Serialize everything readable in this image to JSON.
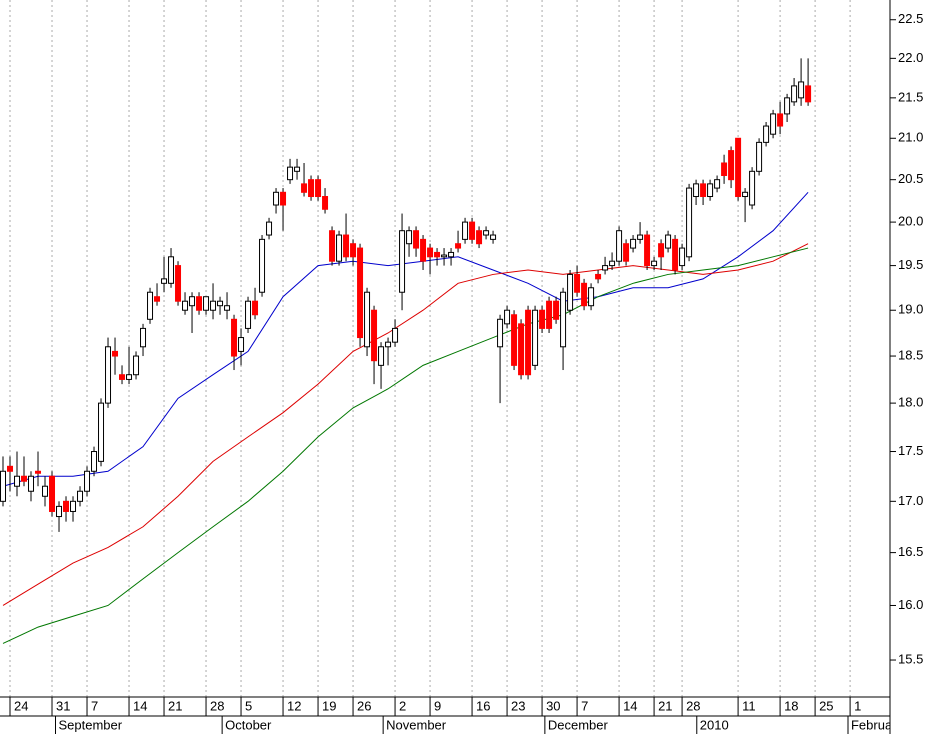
{
  "chart_data": {
    "type": "candlestick",
    "log_scale": true,
    "grid": true,
    "up_color": "#ffffff",
    "down_color": "#ff0000",
    "xlim": [
      -0.43,
      126.7
    ],
    "ylim": [
      15.17,
      22.76
    ],
    "yticks": [
      15.5,
      {
        "value": 16,
        "label": "16.0"
      },
      16.5,
      {
        "value": 17,
        "label": "17.0"
      },
      17.5,
      {
        "value": 18,
        "label": "18.0"
      },
      18.5,
      {
        "value": 19,
        "label": "19.0"
      },
      19.5,
      {
        "value": 20,
        "label": "20.0"
      },
      20.5,
      {
        "value": 21,
        "label": "21.0"
      },
      21.5,
      {
        "value": 22,
        "label": "22.0"
      },
      22.5
    ],
    "xticks": [
      {
        "value": 1,
        "label": "24"
      },
      {
        "value": 7,
        "label": "31"
      },
      {
        "value": 12,
        "label": "7"
      },
      {
        "value": 18,
        "label": "14"
      },
      {
        "value": 23,
        "label": "21"
      },
      {
        "value": 29,
        "label": "28"
      },
      {
        "value": 34,
        "label": "5"
      },
      {
        "value": 40,
        "label": "12"
      },
      {
        "value": 45,
        "label": "19"
      },
      {
        "value": 50,
        "label": "26"
      },
      {
        "value": 56,
        "label": "2"
      },
      {
        "value": 61,
        "label": "9"
      },
      {
        "value": 67,
        "label": "16"
      },
      {
        "value": 72,
        "label": "23"
      },
      {
        "value": 77,
        "label": "30"
      },
      {
        "value": 82,
        "label": "7"
      },
      {
        "value": 88,
        "label": "14"
      },
      {
        "value": 93,
        "label": "21"
      },
      {
        "value": 97,
        "label": "28"
      },
      {
        "value": 105,
        "label": "11"
      },
      {
        "value": 111,
        "label": "18"
      },
      {
        "value": 116,
        "label": "25"
      },
      {
        "value": 121,
        "label": "1"
      }
    ],
    "month_ticks": [
      {
        "value": 7.5,
        "label": "September"
      },
      {
        "value": 31.3,
        "label": "October"
      },
      {
        "value": 54.3,
        "label": "November"
      },
      {
        "value": 77.4,
        "label": "December"
      },
      {
        "value": 99.1,
        "label": "2010"
      },
      {
        "value": 120.7,
        "label": "February"
      }
    ],
    "open": [
      17.0,
      17.35,
      17.15,
      17.25,
      17.1,
      17.3,
      17.05,
      17.25,
      16.85,
      17.0,
      16.9,
      17.0,
      17.1,
      17.3,
      17.4,
      18.0,
      18.55,
      18.3,
      18.25,
      18.3,
      18.6,
      18.9,
      19.15,
      19.3,
      19.3,
      19.5,
      19.0,
      19.05,
      19.15,
      19.0,
      19.0,
      19.05,
      19.0,
      18.9,
      18.55,
      18.8,
      19.1,
      19.2,
      19.85,
      20.2,
      20.35,
      20.5,
      20.6,
      20.45,
      20.5,
      20.5,
      20.3,
      19.9,
      19.55,
      19.85,
      19.75,
      19.7,
      18.6,
      19.0,
      18.4,
      18.6,
      18.65,
      19.2,
      19.75,
      19.9,
      19.8,
      19.7,
      19.65,
      19.6,
      19.6,
      19.75,
      19.8,
      20.0,
      19.9,
      19.85,
      19.8,
      18.6,
      18.85,
      18.95,
      18.85,
      19.0,
      18.4,
      19.0,
      19.1,
      19.1,
      18.6,
      19.0,
      19.4,
      19.3,
      19.05,
      19.4,
      19.45,
      19.5,
      19.55,
      19.75,
      19.7,
      19.8,
      19.85,
      19.5,
      19.75,
      19.7,
      19.8,
      19.5,
      19.6,
      20.3,
      20.45,
      20.3,
      20.4,
      20.7,
      20.85,
      21.0,
      20.3,
      20.2,
      20.6,
      20.95,
      21.05,
      21.3,
      21.3,
      21.45,
      21.5,
      21.65
    ],
    "high": [
      17.45,
      17.45,
      17.5,
      17.45,
      17.3,
      17.5,
      17.25,
      17.3,
      17.0,
      17.05,
      17.05,
      17.15,
      17.35,
      17.55,
      18.05,
      18.7,
      18.7,
      18.4,
      18.6,
      18.55,
      18.85,
      19.25,
      19.3,
      19.6,
      19.7,
      19.55,
      19.2,
      19.2,
      19.2,
      19.15,
      19.3,
      19.15,
      19.2,
      18.95,
      18.8,
      19.15,
      19.25,
      19.85,
      20.05,
      20.4,
      20.4,
      20.75,
      20.75,
      20.7,
      20.55,
      20.55,
      20.4,
      19.95,
      19.9,
      20.1,
      19.8,
      19.75,
      19.25,
      19.05,
      18.65,
      18.7,
      18.9,
      20.1,
      19.95,
      19.95,
      19.85,
      19.75,
      19.7,
      19.7,
      19.7,
      19.9,
      20.05,
      20.05,
      19.95,
      19.95,
      19.9,
      18.95,
      19.05,
      19.0,
      18.9,
      19.05,
      19.05,
      19.05,
      19.15,
      19.15,
      19.25,
      19.45,
      19.5,
      19.35,
      19.3,
      19.45,
      19.6,
      19.65,
      19.95,
      19.8,
      19.85,
      20.0,
      19.9,
      19.6,
      19.8,
      19.9,
      19.85,
      19.75,
      20.45,
      20.5,
      20.5,
      20.5,
      20.55,
      20.8,
      20.9,
      21.0,
      20.4,
      20.65,
      21.0,
      21.2,
      21.35,
      21.45,
      21.55,
      21.75,
      22.0,
      22.0
    ],
    "low": [
      16.95,
      17.1,
      17.05,
      17.15,
      17.0,
      17.15,
      16.95,
      16.85,
      16.7,
      16.8,
      16.8,
      16.95,
      17.05,
      17.25,
      17.35,
      17.95,
      18.3,
      18.2,
      18.2,
      18.25,
      18.5,
      18.85,
      19.05,
      19.2,
      19.25,
      19.05,
      18.95,
      18.75,
      18.95,
      18.95,
      18.9,
      18.95,
      18.9,
      18.35,
      18.4,
      18.75,
      18.9,
      19.15,
      19.8,
      20.1,
      19.9,
      20.45,
      20.5,
      20.3,
      20.25,
      20.25,
      20.1,
      19.5,
      19.5,
      19.55,
      19.5,
      18.6,
      18.5,
      18.2,
      18.15,
      18.4,
      18.6,
      19.0,
      19.6,
      19.6,
      19.45,
      19.4,
      19.5,
      19.5,
      19.5,
      19.65,
      19.75,
      19.75,
      19.7,
      19.8,
      19.75,
      18.0,
      18.8,
      18.35,
      18.25,
      18.25,
      18.35,
      18.75,
      18.75,
      18.85,
      18.35,
      18.95,
      19.15,
      19.0,
      19.0,
      19.3,
      19.4,
      19.45,
      19.5,
      19.5,
      19.65,
      19.75,
      19.45,
      19.45,
      19.45,
      19.65,
      19.4,
      19.45,
      19.55,
      20.2,
      20.2,
      20.25,
      20.35,
      20.45,
      20.4,
      20.25,
      20.0,
      20.15,
      20.55,
      20.9,
      21.0,
      21.05,
      21.2,
      21.4,
      21.4,
      21.4
    ],
    "close": [
      17.3,
      17.3,
      17.25,
      17.2,
      17.25,
      17.28,
      17.15,
      16.9,
      16.95,
      16.9,
      17.0,
      17.1,
      17.3,
      17.5,
      18.0,
      18.6,
      18.5,
      18.25,
      18.3,
      18.5,
      18.8,
      19.2,
      19.1,
      19.35,
      19.6,
      19.1,
      19.1,
      19.15,
      19.0,
      19.15,
      19.1,
      19.1,
      19.05,
      18.5,
      18.7,
      19.1,
      18.95,
      19.8,
      20.0,
      20.35,
      20.2,
      20.65,
      20.65,
      20.35,
      20.3,
      20.3,
      20.15,
      19.55,
      19.85,
      19.6,
      19.6,
      18.7,
      19.2,
      18.45,
      18.6,
      18.65,
      18.8,
      19.9,
      19.9,
      19.7,
      19.55,
      19.6,
      19.6,
      19.62,
      19.65,
      19.7,
      20.0,
      19.8,
      19.75,
      19.9,
      19.85,
      18.9,
      19.0,
      18.4,
      18.3,
      18.3,
      19.0,
      18.8,
      18.8,
      18.9,
      19.2,
      19.4,
      19.2,
      19.05,
      19.25,
      19.35,
      19.5,
      19.55,
      19.9,
      19.55,
      19.8,
      19.85,
      19.5,
      19.55,
      19.6,
      19.85,
      19.45,
      19.7,
      20.4,
      20.45,
      20.3,
      20.45,
      20.5,
      20.55,
      20.5,
      20.3,
      20.35,
      20.6,
      20.95,
      21.15,
      21.3,
      21.15,
      21.5,
      21.65,
      21.7,
      21.45
    ],
    "series": [
      {
        "color": "#0000cc",
        "x": [
          0,
          5,
          10,
          15,
          20,
          25,
          30,
          35,
          40,
          45,
          50,
          55,
          60,
          65,
          70,
          75,
          80,
          85,
          90,
          95,
          100,
          105,
          110,
          115
        ],
        "values": [
          17.15,
          17.25,
          17.25,
          17.3,
          17.55,
          18.05,
          18.3,
          18.55,
          19.15,
          19.5,
          19.55,
          19.5,
          19.55,
          19.6,
          19.45,
          19.3,
          19.1,
          19.15,
          19.25,
          19.25,
          19.35,
          19.6,
          19.9,
          20.35
        ]
      },
      {
        "color": "#dd0000",
        "x": [
          0,
          5,
          10,
          15,
          20,
          25,
          30,
          35,
          40,
          45,
          50,
          55,
          60,
          65,
          70,
          75,
          80,
          85,
          90,
          95,
          100,
          105,
          110,
          115
        ],
        "values": [
          16.0,
          16.2,
          16.4,
          16.55,
          16.75,
          17.05,
          17.4,
          17.65,
          17.9,
          18.2,
          18.55,
          18.75,
          19.0,
          19.3,
          19.4,
          19.45,
          19.4,
          19.45,
          19.5,
          19.45,
          19.4,
          19.45,
          19.55,
          19.75
        ]
      },
      {
        "color": "#007700",
        "x": [
          0,
          5,
          10,
          15,
          20,
          25,
          30,
          35,
          40,
          45,
          50,
          55,
          60,
          65,
          70,
          75,
          80,
          85,
          90,
          95,
          100,
          105,
          110,
          115
        ],
        "values": [
          15.65,
          15.8,
          15.9,
          16.0,
          16.25,
          16.5,
          16.75,
          17.0,
          17.3,
          17.65,
          17.95,
          18.15,
          18.4,
          18.55,
          18.7,
          18.85,
          18.95,
          19.15,
          19.3,
          19.4,
          19.45,
          19.5,
          19.6,
          19.7
        ]
      }
    ]
  }
}
